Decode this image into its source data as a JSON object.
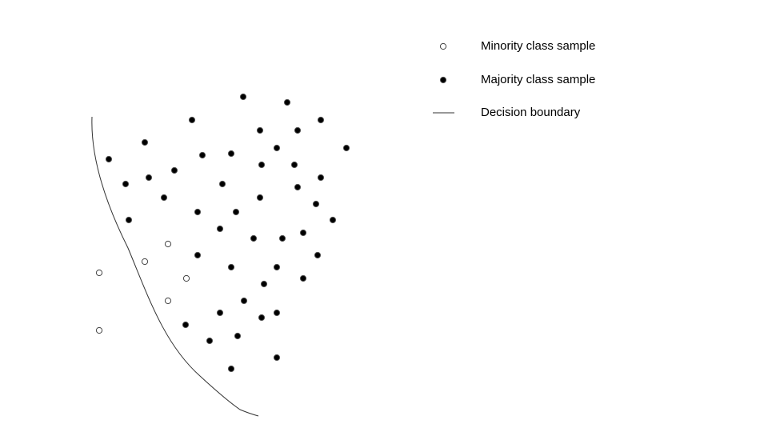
{
  "legend": {
    "minority_label": "Minority class sample",
    "majority_label": "Majority class sample",
    "boundary_label": "Decision boundary"
  },
  "colors": {
    "majority_fill": "#000000",
    "majority_stroke": "#555555",
    "minority_fill": "#ffffff",
    "minority_stroke": "#444444",
    "boundary_stroke": "#333333"
  }
}
